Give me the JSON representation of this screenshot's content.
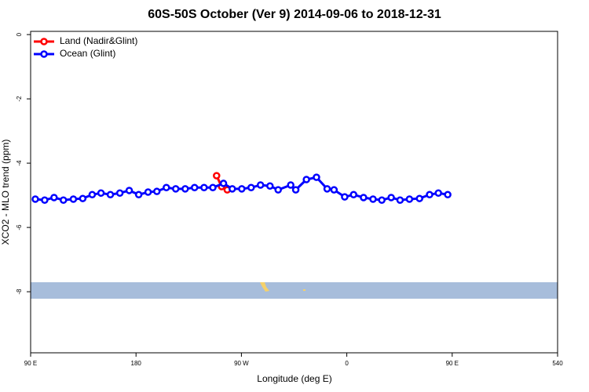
{
  "chart_data": {
    "type": "line",
    "title": "60S-50S October (Ver 9)   2014-09-06 to 2018-12-31",
    "xlabel": "Longitude (deg E)",
    "ylabel": "XCO2 - MLO trend (ppm)",
    "xlim": [
      90,
      540
    ],
    "ylim": [
      -9.9,
      0.1
    ],
    "xticks": [
      {
        "value": 90,
        "label": "90 E"
      },
      180,
      {
        "value": 270,
        "label": "90 W"
      },
      {
        "value": 360,
        "label": "0"
      },
      {
        "value": 450,
        "label": "90 E"
      },
      540
    ],
    "yticks": [
      0,
      -2,
      -4,
      -6,
      -8
    ],
    "legend": "top-left",
    "series": [
      {
        "name": "Land (Nadir&Glint)",
        "color": "#ff0000",
        "x": [
          248.8,
          253.1,
          257.9
        ],
        "values": [
          -4.39,
          -4.73,
          -4.83
        ]
      },
      {
        "name": "Ocean (Glint)",
        "color": "#0000ff",
        "x": [
          94,
          102,
          110,
          118,
          126.5,
          134.5,
          142.6,
          150.1,
          158.1,
          166.2,
          174.2,
          182.3,
          190.3,
          197.8,
          205.9,
          213.9,
          222,
          230,
          238.1,
          245.6,
          254.7,
          262.2,
          270.3,
          278.3,
          286.3,
          294.4,
          301.4,
          312.1,
          316.4,
          325.5,
          334.1,
          343.2,
          349.1,
          358.2,
          365.8,
          374.3,
          382.4,
          389.9,
          397.9,
          405.5,
          413.5,
          422.1,
          430.7,
          438.2,
          446.2
        ],
        "values": [
          -5.12,
          -5.15,
          -5.07,
          -5.15,
          -5.12,
          -5.1,
          -4.98,
          -4.93,
          -4.98,
          -4.93,
          -4.85,
          -4.98,
          -4.9,
          -4.88,
          -4.76,
          -4.8,
          -4.8,
          -4.76,
          -4.76,
          -4.76,
          -4.63,
          -4.8,
          -4.8,
          -4.76,
          -4.68,
          -4.71,
          -4.83,
          -4.68,
          -4.83,
          -4.51,
          -4.44,
          -4.8,
          -4.83,
          -5.05,
          -4.98,
          -5.07,
          -5.12,
          -5.15,
          -5.07,
          -5.15,
          -5.12,
          -5.1,
          -4.98,
          -4.93,
          -4.98
        ]
      }
    ]
  }
}
